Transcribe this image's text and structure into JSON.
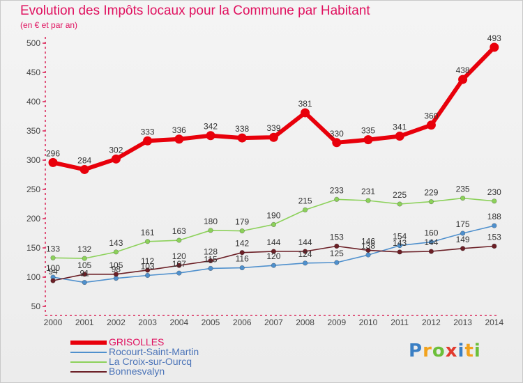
{
  "title": "Evolution des Impôts locaux pour la Commune par Habitant",
  "subtitle": "(en € et par an)",
  "logo": "Proxiti",
  "colors": {
    "title": "#e0115f",
    "grisolles": "#e8000b",
    "rocourt": "#4f90cd",
    "croix": "#8cd15a",
    "bonnesvalyn": "#6b1f26"
  },
  "chart_data": {
    "type": "line",
    "title": "Evolution des Impôts locaux pour la Commune par Habitant",
    "subtitle": "(en € et par an)",
    "x": [
      "2000",
      "2001",
      "2002",
      "2003",
      "2004",
      "2005",
      "2006",
      "2007",
      "2008",
      "2009",
      "2010",
      "2011",
      "2012",
      "2013",
      "2014"
    ],
    "ylim": [
      50,
      500
    ],
    "yticks": [
      50,
      100,
      150,
      200,
      250,
      300,
      350,
      400,
      450,
      500
    ],
    "grid": false,
    "legend_position": "bottom-left",
    "series": [
      {
        "name": "GRISOLLES",
        "color": "#e8000b",
        "values": [
          296,
          284,
          302,
          333,
          336,
          342,
          338,
          339,
          381,
          330,
          335,
          341,
          360,
          438,
          493
        ]
      },
      {
        "name": "Rocourt-Saint-Martin",
        "color": "#4f90cd",
        "values": [
          100,
          91,
          98,
          103,
          107,
          115,
          116,
          120,
          124,
          125,
          138,
          154,
          160,
          175,
          188
        ]
      },
      {
        "name": "La Croix-sur-Ourcq",
        "color": "#8cd15a",
        "values": [
          133,
          132,
          143,
          161,
          163,
          180,
          179,
          190,
          215,
          233,
          231,
          225,
          229,
          235,
          230
        ]
      },
      {
        "name": "Bonnesvalyn",
        "color": "#6b1f26",
        "values": [
          94,
          105,
          105,
          112,
          120,
          128,
          142,
          144,
          144,
          153,
          146,
          143,
          144,
          149,
          153
        ]
      }
    ]
  }
}
